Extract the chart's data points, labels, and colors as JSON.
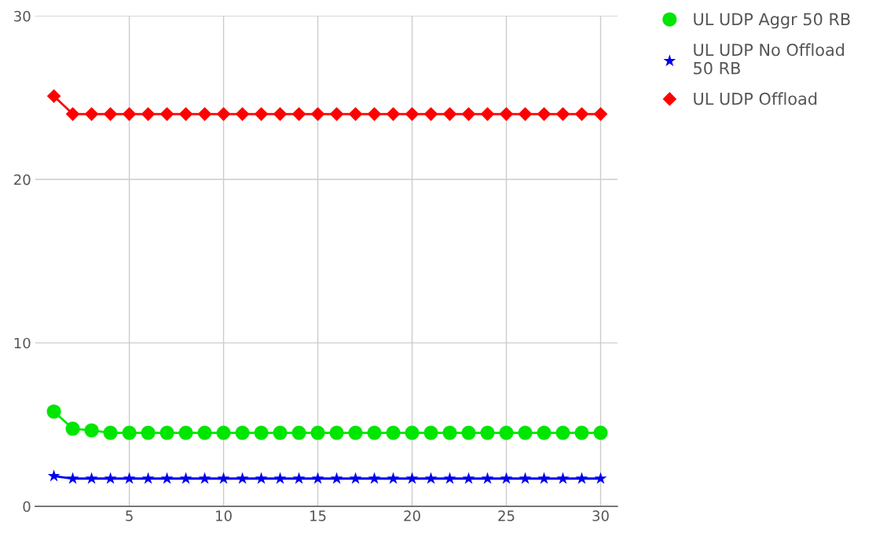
{
  "chart_data": {
    "type": "line",
    "x": [
      1,
      2,
      3,
      4,
      5,
      6,
      7,
      8,
      9,
      10,
      11,
      12,
      13,
      14,
      15,
      16,
      17,
      18,
      19,
      20,
      21,
      22,
      23,
      24,
      25,
      26,
      27,
      28,
      29,
      30
    ],
    "series": [
      {
        "name": "UL UDP Aggr 50 RB",
        "color": "#00e600",
        "marker": "circle",
        "values": [
          5.8,
          4.75,
          4.65,
          4.5,
          4.5,
          4.5,
          4.5,
          4.5,
          4.5,
          4.5,
          4.5,
          4.5,
          4.5,
          4.5,
          4.5,
          4.5,
          4.5,
          4.5,
          4.5,
          4.5,
          4.5,
          4.5,
          4.5,
          4.5,
          4.5,
          4.5,
          4.5,
          4.5,
          4.5,
          4.5
        ]
      },
      {
        "name": "UL UDP No Offload 50 RB",
        "color": "#0000ee",
        "marker": "star",
        "values": [
          1.85,
          1.7,
          1.7,
          1.7,
          1.7,
          1.7,
          1.7,
          1.7,
          1.7,
          1.7,
          1.7,
          1.7,
          1.7,
          1.7,
          1.7,
          1.7,
          1.7,
          1.7,
          1.7,
          1.7,
          1.7,
          1.7,
          1.7,
          1.7,
          1.7,
          1.7,
          1.7,
          1.7,
          1.7,
          1.7
        ]
      },
      {
        "name": "UL UDP Offload",
        "color": "#ff0000",
        "marker": "diamond",
        "values": [
          25.1,
          24,
          24,
          24,
          24,
          24,
          24,
          24,
          24,
          24,
          24,
          24,
          24,
          24,
          24,
          24,
          24,
          24,
          24,
          24,
          24,
          24,
          24,
          24,
          24,
          24,
          24,
          24,
          24,
          24
        ]
      }
    ],
    "xlim": [
      0,
      30.9
    ],
    "ylim": [
      0,
      30
    ],
    "xticks": [
      5,
      10,
      15,
      20,
      25,
      30
    ],
    "yticks": [
      0,
      10,
      20,
      30
    ],
    "grid": true,
    "legend": "right"
  }
}
